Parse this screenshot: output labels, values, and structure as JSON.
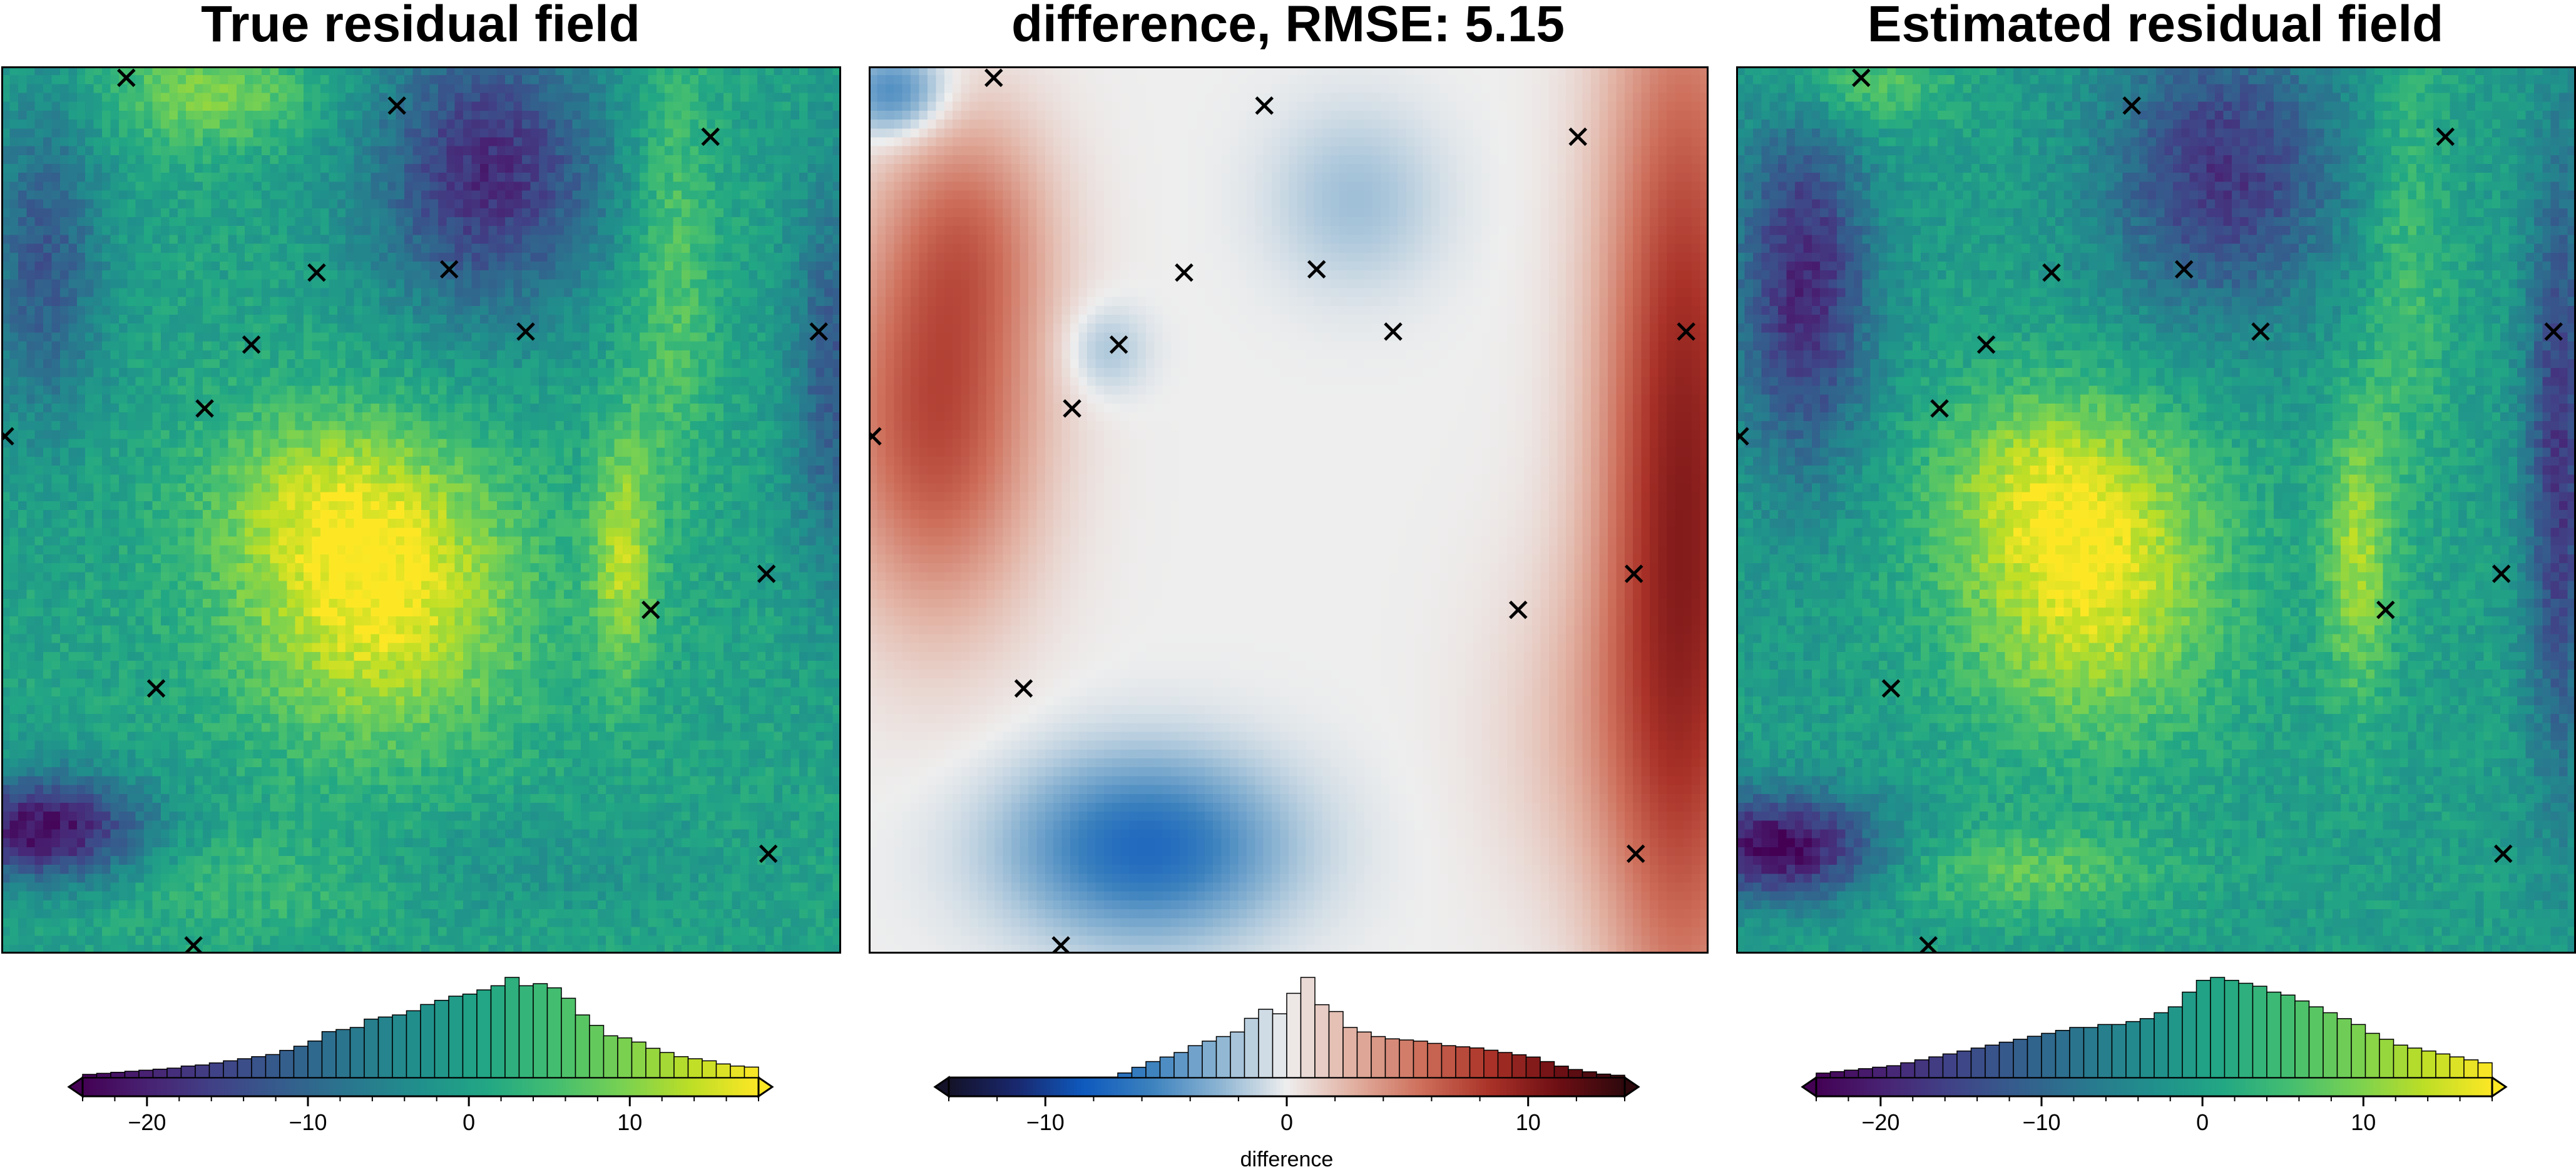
{
  "chart_data": [
    {
      "type": "heatmap",
      "title": "True residual field",
      "colormap": "viridis",
      "colorbar": {
        "ticks": [
          -20,
          -10,
          0,
          10
        ],
        "tick_labels": [
          "−20",
          "−10",
          "0",
          "10"
        ],
        "range": [
          -24,
          18
        ],
        "histogram": true,
        "label": ""
      },
      "histogram_counts": [
        3,
        4,
        5,
        6,
        7,
        8,
        9,
        11,
        12,
        14,
        16,
        18,
        20,
        22,
        26,
        30,
        35,
        44,
        46,
        48,
        56,
        58,
        60,
        64,
        70,
        74,
        78,
        80,
        84,
        88,
        96,
        88,
        90,
        86,
        76,
        60,
        50,
        40,
        38,
        34,
        28,
        24,
        20,
        18,
        16,
        13,
        11,
        10
      ],
      "sample_points": [
        [
          1185,
          47
        ],
        [
          1330,
          64
        ],
        [
          1498,
          83
        ],
        [
          1287,
          166
        ],
        [
          1358,
          164
        ],
        [
          1252,
          210
        ],
        [
          1399,
          202
        ],
        [
          1556,
          202
        ],
        [
          1227,
          249
        ],
        [
          1120,
          266
        ],
        [
          1528,
          350
        ],
        [
          1466,
          372
        ],
        [
          1201,
          420
        ],
        [
          1529,
          521
        ],
        [
          1221,
          577
        ]
      ],
      "grid_bins": 100
    },
    {
      "type": "heatmap",
      "title": "difference, RMSE: 5.15",
      "colormap": "diverging blue-white-red",
      "colorbar": {
        "ticks": [
          -10,
          0,
          10
        ],
        "tick_labels": [
          "−10",
          "0",
          "10"
        ],
        "range": [
          -14,
          14
        ],
        "histogram": true,
        "label": "difference"
      },
      "histogram_counts": [
        0,
        0,
        0,
        0,
        0,
        0,
        0,
        0,
        0,
        0,
        0,
        0,
        4,
        9,
        14,
        18,
        22,
        28,
        32,
        36,
        40,
        52,
        60,
        56,
        74,
        88,
        64,
        58,
        44,
        40,
        36,
        34,
        33,
        32,
        30,
        28,
        27,
        26,
        24,
        22,
        20,
        18,
        14,
        10,
        7,
        5,
        3,
        2
      ],
      "sample_points": [
        [
          1185,
          47
        ],
        [
          1330,
          64
        ],
        [
          1498,
          83
        ],
        [
          1287,
          166
        ],
        [
          1358,
          164
        ],
        [
          1252,
          210
        ],
        [
          1399,
          202
        ],
        [
          1556,
          202
        ],
        [
          1227,
          249
        ],
        [
          1120,
          266
        ],
        [
          1528,
          350
        ],
        [
          1466,
          372
        ],
        [
          1201,
          420
        ],
        [
          1529,
          521
        ],
        [
          1221,
          577
        ]
      ],
      "grid_bins": 100
    },
    {
      "type": "heatmap",
      "title": "Estimated residual field",
      "colormap": "viridis",
      "colorbar": {
        "ticks": [
          -20,
          -10,
          0,
          10
        ],
        "tick_labels": [
          "−20",
          "−10",
          "0",
          "10"
        ],
        "range": [
          -24,
          18
        ],
        "histogram": true,
        "label": ""
      },
      "histogram_counts": [
        3,
        4,
        5,
        6,
        7,
        8,
        10,
        12,
        14,
        16,
        18,
        20,
        22,
        24,
        26,
        28,
        30,
        32,
        34,
        34,
        36,
        36,
        38,
        40,
        44,
        48,
        58,
        66,
        68,
        66,
        64,
        62,
        58,
        56,
        52,
        48,
        44,
        40,
        36,
        30,
        26,
        22,
        20,
        18,
        16,
        14,
        12,
        10
      ],
      "sample_points": [
        [
          1185,
          47
        ],
        [
          1330,
          64
        ],
        [
          1498,
          83
        ],
        [
          1287,
          166
        ],
        [
          1358,
          164
        ],
        [
          1252,
          210
        ],
        [
          1399,
          202
        ],
        [
          1556,
          202
        ],
        [
          1227,
          249
        ],
        [
          1120,
          266
        ],
        [
          1528,
          350
        ],
        [
          1466,
          372
        ],
        [
          1201,
          420
        ],
        [
          1529,
          521
        ],
        [
          1221,
          577
        ]
      ],
      "grid_bins": 100
    }
  ]
}
